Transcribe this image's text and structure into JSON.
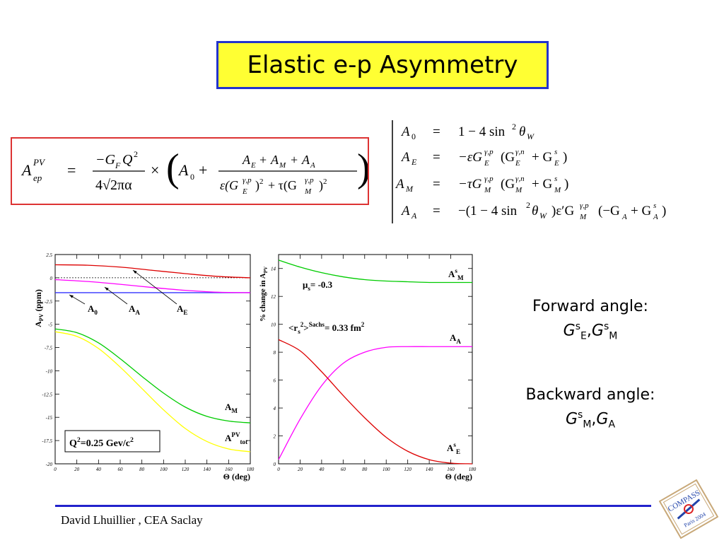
{
  "title": "Elastic e-p Asymmetry",
  "main_formula": {
    "lhs": "A",
    "lhs_sup": "PV",
    "lhs_sub": "ep",
    "eq": "=",
    "numerator": "−G",
    "numerator_sub": "F",
    "numerator_q": "Q",
    "denominator": "4√2πα",
    "times": "×",
    "a0": "A",
    "a0_sub": "0",
    "frac_num": "A",
    "frac_den": "ε(G"
  },
  "definitions": [
    {
      "lhs": "A",
      "sub": "0",
      "rhs": "1 − 4 sin² θ"
    },
    {
      "lhs": "A",
      "sub": "E",
      "rhs": "−εG"
    },
    {
      "lhs": "A",
      "sub": "M",
      "rhs": "−τG"
    },
    {
      "lhs": "A",
      "sub": "A",
      "rhs": "−(1 − 4 sin² θ"
    }
  ],
  "chart_data": [
    {
      "type": "line",
      "xlabel": "Θ (deg)",
      "ylabel": "A",
      "ylabel_sub": "PV",
      "ylabel_unit": "(ppm)",
      "xlim": [
        0,
        180
      ],
      "ylim": [
        -20,
        2.5
      ],
      "xticks": [
        0,
        20,
        40,
        60,
        80,
        100,
        120,
        140,
        160,
        180
      ],
      "yticks": [
        2.5,
        0,
        -2.5,
        -5,
        -7.5,
        -10,
        -12.5,
        -15,
        -17.5,
        -20
      ],
      "ytick_labels": [
        "2.5",
        "0",
        "-2.5",
        "-5",
        "-7.5",
        "-10",
        "-12.5",
        "-15",
        "-17.5",
        "-20"
      ],
      "note": "Q²=0.25 Gev/c²",
      "note_parts": {
        "q": "Q",
        "sup1": "2",
        "mid": "=0.25 Gev/c",
        "sup2": "2"
      },
      "series": [
        {
          "name": "A0",
          "label": "A",
          "label_sub": "0",
          "color": "#3333ff",
          "x": [
            0,
            180
          ],
          "y": [
            -1.6,
            -1.6
          ]
        },
        {
          "name": "AA",
          "label": "A",
          "label_sub": "A",
          "color": "#ff00ff",
          "x": [
            0,
            30,
            60,
            90,
            120,
            150,
            180
          ],
          "y": [
            -0.2,
            -0.4,
            -0.7,
            -1.05,
            -1.35,
            -1.55,
            -1.6
          ]
        },
        {
          "name": "AE",
          "label": "A",
          "label_sub": "E",
          "color": "#dd0000",
          "x": [
            0,
            30,
            60,
            90,
            120,
            150,
            180
          ],
          "y": [
            1.4,
            1.35,
            1.15,
            0.8,
            0.45,
            0.15,
            0.0
          ]
        },
        {
          "name": "AM",
          "label": "A",
          "label_sub": "M",
          "color": "#00cc00",
          "x": [
            0,
            20,
            40,
            60,
            80,
            100,
            120,
            140,
            160,
            180
          ],
          "y": [
            -5.5,
            -5.9,
            -7.0,
            -8.7,
            -10.6,
            -12.4,
            -13.9,
            -14.9,
            -15.4,
            -15.6
          ]
        },
        {
          "name": "Atot",
          "label": "A",
          "label_sup": "PV",
          "label_sub": "tot",
          "color": "#ffff00",
          "x": [
            0,
            20,
            40,
            60,
            80,
            100,
            120,
            140,
            160,
            180
          ],
          "y": [
            -5.8,
            -6.3,
            -7.6,
            -9.6,
            -11.9,
            -14.2,
            -16.2,
            -17.6,
            -18.4,
            -18.7
          ]
        }
      ]
    },
    {
      "type": "line",
      "xlabel": "Θ (deg)",
      "ylabel": "% change in A",
      "ylabel_sub": "PV",
      "xlim": [
        0,
        180
      ],
      "ylim": [
        0,
        15
      ],
      "xticks": [
        0,
        20,
        40,
        60,
        80,
        100,
        120,
        140,
        160,
        180
      ],
      "yticks": [
        0,
        2,
        4,
        6,
        8,
        10,
        12,
        14
      ],
      "annotation_mu": {
        "pre": "μ",
        "sub": "s",
        "post": "= -0.3"
      },
      "annotation_r": {
        "pre": "<r",
        "sub": "s",
        "sup": "2",
        "mid": ">",
        "sup2": "Sachs",
        "post": "= 0.33 fm",
        "sup3": "2"
      },
      "series": [
        {
          "name": "AsM",
          "label": "A",
          "label_sup": "s",
          "label_sub": "M",
          "color": "#00cc00",
          "x": [
            0,
            20,
            40,
            60,
            80,
            100,
            120,
            140,
            160,
            180
          ],
          "y": [
            14.6,
            14.1,
            13.7,
            13.4,
            13.2,
            13.1,
            13.05,
            13.0,
            13.0,
            13.0
          ]
        },
        {
          "name": "AA",
          "label": "A",
          "label_sub": "A",
          "color": "#ff00ff",
          "x": [
            0,
            20,
            40,
            60,
            80,
            100,
            120,
            140,
            160,
            180
          ],
          "y": [
            0.3,
            3.2,
            5.6,
            7.2,
            8.0,
            8.35,
            8.4,
            8.4,
            8.4,
            8.4
          ]
        },
        {
          "name": "AsE",
          "label": "A",
          "label_sup": "s",
          "label_sub": "E",
          "color": "#dd0000",
          "x": [
            0,
            20,
            40,
            60,
            80,
            100,
            120,
            140,
            160,
            180
          ],
          "y": [
            8.9,
            8.1,
            6.6,
            4.9,
            3.3,
            1.9,
            0.9,
            0.3,
            0.05,
            0.0
          ]
        }
      ]
    }
  ],
  "side": {
    "forward_title": "Forward angle:",
    "forward_vars": "G",
    "backward_title": "Backward angle:",
    "backward_vars": "G"
  },
  "footer": "David Lhuillier , CEA Saclay",
  "logo": {
    "text1": "COMPASS",
    "text2": "Paris 2004"
  }
}
